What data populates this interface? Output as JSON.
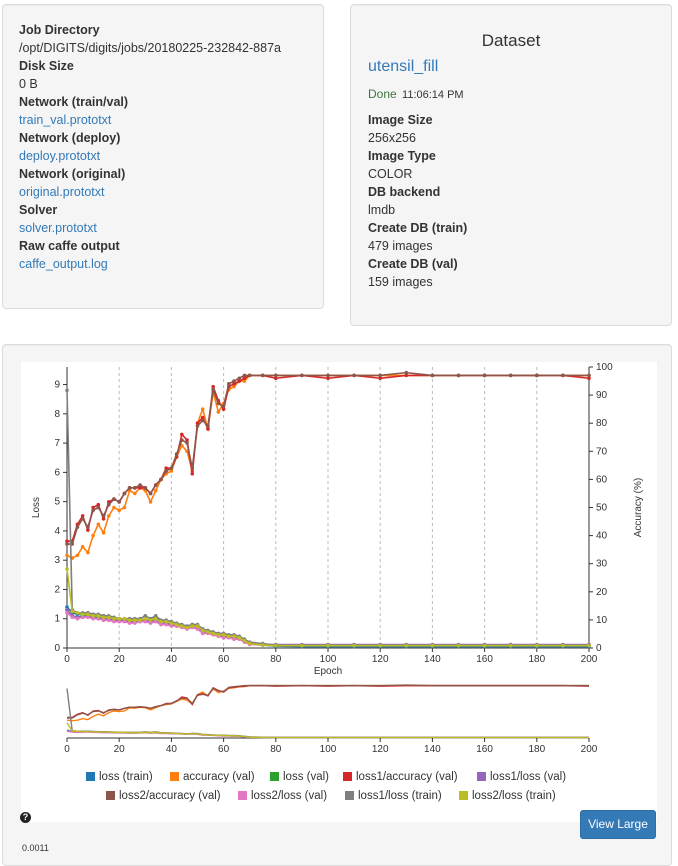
{
  "job_info": {
    "job_directory_label": "Job Directory",
    "job_directory": "/opt/DIGITS/digits/jobs/20180225-232842-887a",
    "disk_size_label": "Disk Size",
    "disk_size": "0 B",
    "network_trainval_label": "Network (train/val)",
    "network_trainval": "train_val.prototxt",
    "network_deploy_label": "Network (deploy)",
    "network_deploy": "deploy.prototxt",
    "network_original_label": "Network (original)",
    "network_original": "original.prototxt",
    "solver_label": "Solver",
    "solver": "solver.prototxt",
    "raw_caffe_label": "Raw caffe output",
    "raw_caffe": "caffe_output.log"
  },
  "dataset": {
    "heading": "Dataset",
    "name": "utensil_fill",
    "status": "Done",
    "time": "11:06:14 PM",
    "image_size_label": "Image Size",
    "image_size": "256x256",
    "image_type_label": "Image Type",
    "image_type": "COLOR",
    "db_backend_label": "DB backend",
    "db_backend": "lmdb",
    "create_train_label": "Create DB (train)",
    "create_train": "479 images",
    "create_val_label": "Create DB (val)",
    "create_val": "159 images"
  },
  "chart_data": {
    "type": "line",
    "xlabel": "Epoch",
    "ylabel": "Loss",
    "y2label": "Accuracy (%)",
    "xlim": [
      0,
      200
    ],
    "ylim": [
      0,
      9.6
    ],
    "y2lim": [
      0,
      100
    ],
    "x_ticks": [
      0,
      20,
      40,
      60,
      80,
      100,
      120,
      140,
      160,
      180,
      200
    ],
    "y_ticks": [
      0,
      1,
      2,
      3,
      4,
      5,
      6,
      7,
      8,
      9
    ],
    "y2_ticks": [
      0,
      10,
      20,
      30,
      40,
      50,
      60,
      70,
      80,
      90,
      100
    ],
    "x": [
      0,
      2,
      4,
      6,
      8,
      10,
      12,
      14,
      16,
      18,
      20,
      22,
      24,
      26,
      28,
      30,
      32,
      34,
      36,
      38,
      40,
      42,
      44,
      46,
      48,
      50,
      52,
      54,
      56,
      58,
      60,
      62,
      64,
      66,
      68,
      70,
      75,
      80,
      90,
      100,
      110,
      120,
      130,
      140,
      150,
      160,
      170,
      180,
      190,
      200
    ],
    "series": [
      {
        "name": "loss (train)",
        "color": "#1f77b4",
        "axis": "loss",
        "values": [
          1.4,
          1.2,
          1.15,
          1.15,
          1.2,
          1.15,
          1.1,
          1.1,
          1.05,
          1.0,
          1.0,
          0.95,
          0.95,
          0.9,
          0.95,
          1.0,
          0.9,
          1.05,
          0.9,
          0.85,
          0.8,
          0.8,
          0.75,
          0.7,
          0.8,
          0.75,
          0.6,
          0.55,
          0.5,
          0.45,
          0.45,
          0.4,
          0.4,
          0.35,
          0.25,
          0.15,
          0.1,
          0.06,
          0.05,
          0.05,
          0.05,
          0.05,
          0.05,
          0.05,
          0.05,
          0.05,
          0.05,
          0.05,
          0.05,
          0.05
        ]
      },
      {
        "name": "accuracy (val)",
        "color": "#ff7f0e",
        "axis": "accuracy",
        "values": [
          33,
          32,
          33,
          36,
          34,
          40,
          44,
          41,
          47,
          50,
          49,
          50,
          56,
          55,
          57,
          56,
          52,
          56,
          60,
          62,
          63,
          68,
          72,
          70,
          63,
          80,
          85,
          78,
          91,
          84,
          87,
          92,
          93,
          95,
          95,
          97,
          97,
          97,
          97,
          97,
          97,
          97,
          97,
          97,
          97,
          97,
          97,
          97,
          97,
          97
        ]
      },
      {
        "name": "loss (val)",
        "color": "#2ca02c",
        "axis": "loss",
        "values": [
          1.3,
          1.1,
          1.05,
          1.1,
          1.1,
          1.05,
          1.05,
          1.0,
          1.0,
          0.95,
          0.95,
          0.95,
          0.9,
          0.9,
          0.95,
          0.95,
          0.9,
          0.95,
          0.85,
          0.85,
          0.8,
          0.75,
          0.75,
          0.7,
          0.75,
          0.7,
          0.55,
          0.55,
          0.5,
          0.45,
          0.4,
          0.4,
          0.35,
          0.35,
          0.25,
          0.15,
          0.12,
          0.1,
          0.1,
          0.1,
          0.1,
          0.1,
          0.1,
          0.1,
          0.1,
          0.1,
          0.1,
          0.1,
          0.1,
          0.1
        ]
      },
      {
        "name": "loss1/accuracy (val)",
        "color": "#d62728",
        "axis": "accuracy",
        "values": [
          38,
          38,
          44,
          47,
          42,
          50,
          51,
          46,
          52,
          53,
          52,
          55,
          57,
          57,
          57,
          57,
          55,
          58,
          60,
          64,
          64,
          68,
          76,
          74,
          62,
          80,
          82,
          78,
          93,
          88,
          85,
          93,
          94,
          95,
          96,
          97,
          97,
          96,
          97,
          96,
          97,
          96,
          97,
          97,
          97,
          97,
          97,
          97,
          97,
          96
        ]
      },
      {
        "name": "loss1/loss (val)",
        "color": "#9467bd",
        "axis": "loss",
        "values": [
          1.3,
          1.1,
          1.05,
          1.05,
          1.1,
          1.05,
          1.0,
          1.0,
          1.0,
          0.95,
          0.95,
          0.95,
          0.9,
          0.9,
          0.9,
          0.95,
          0.9,
          0.95,
          0.85,
          0.85,
          0.8,
          0.8,
          0.75,
          0.7,
          0.75,
          0.7,
          0.55,
          0.55,
          0.5,
          0.45,
          0.4,
          0.4,
          0.35,
          0.35,
          0.25,
          0.15,
          0.12,
          0.12,
          0.12,
          0.12,
          0.12,
          0.12,
          0.12,
          0.12,
          0.12,
          0.12,
          0.12,
          0.12,
          0.12,
          0.12
        ]
      },
      {
        "name": "loss2/accuracy (val)",
        "color": "#8c564b",
        "axis": "accuracy",
        "values": [
          37,
          37,
          43,
          46,
          43,
          49,
          50,
          47,
          51,
          53,
          52,
          55,
          57,
          57,
          58,
          57,
          55,
          58,
          60,
          63,
          64,
          69,
          74,
          73,
          64,
          79,
          81,
          79,
          92,
          87,
          86,
          94,
          95,
          96,
          97,
          97,
          97,
          97,
          97,
          97,
          97,
          97,
          98,
          97,
          97,
          97,
          97,
          97,
          97,
          97
        ]
      },
      {
        "name": "loss2/loss (val)",
        "color": "#e377c2",
        "axis": "loss",
        "values": [
          1.2,
          1.05,
          1.0,
          1.05,
          1.05,
          1.0,
          1.0,
          0.95,
          0.95,
          0.9,
          0.9,
          0.9,
          0.85,
          0.85,
          0.9,
          0.9,
          0.85,
          0.9,
          0.8,
          0.8,
          0.75,
          0.75,
          0.7,
          0.65,
          0.7,
          0.65,
          0.5,
          0.5,
          0.45,
          0.4,
          0.35,
          0.35,
          0.3,
          0.3,
          0.2,
          0.12,
          0.1,
          0.1,
          0.1,
          0.1,
          0.1,
          0.1,
          0.1,
          0.1,
          0.1,
          0.1,
          0.1,
          0.1,
          0.1,
          0.1
        ]
      },
      {
        "name": "loss1/loss (train)",
        "color": "#7f7f7f",
        "axis": "loss",
        "values": [
          8.8,
          1.3,
          1.2,
          1.2,
          1.2,
          1.15,
          1.15,
          1.1,
          1.1,
          1.05,
          1.0,
          1.0,
          1.0,
          1.0,
          1.0,
          1.1,
          1.0,
          1.1,
          0.95,
          0.95,
          0.9,
          0.85,
          0.8,
          0.75,
          0.8,
          0.8,
          0.65,
          0.6,
          0.55,
          0.5,
          0.5,
          0.45,
          0.45,
          0.4,
          0.3,
          0.2,
          0.15,
          0.1,
          0.1,
          0.1,
          0.1,
          0.1,
          0.1,
          0.1,
          0.1,
          0.1,
          0.1,
          0.1,
          0.1,
          0.1
        ]
      },
      {
        "name": "loss2/loss (train)",
        "color": "#bcbd22",
        "axis": "loss",
        "values": [
          2.7,
          1.25,
          1.2,
          1.15,
          1.15,
          1.1,
          1.1,
          1.05,
          1.05,
          1.0,
          1.0,
          1.0,
          0.95,
          0.95,
          0.95,
          1.0,
          0.95,
          1.0,
          0.9,
          0.9,
          0.85,
          0.8,
          0.75,
          0.7,
          0.75,
          0.75,
          0.6,
          0.55,
          0.5,
          0.45,
          0.45,
          0.4,
          0.4,
          0.35,
          0.25,
          0.15,
          0.1,
          0.08,
          0.08,
          0.08,
          0.08,
          0.08,
          0.08,
          0.08,
          0.08,
          0.08,
          0.08,
          0.08,
          0.08,
          0.08
        ]
      }
    ]
  },
  "help_icon": "question-icon",
  "view_large_label": "View Large",
  "lr_chart_tick": "0.0011"
}
